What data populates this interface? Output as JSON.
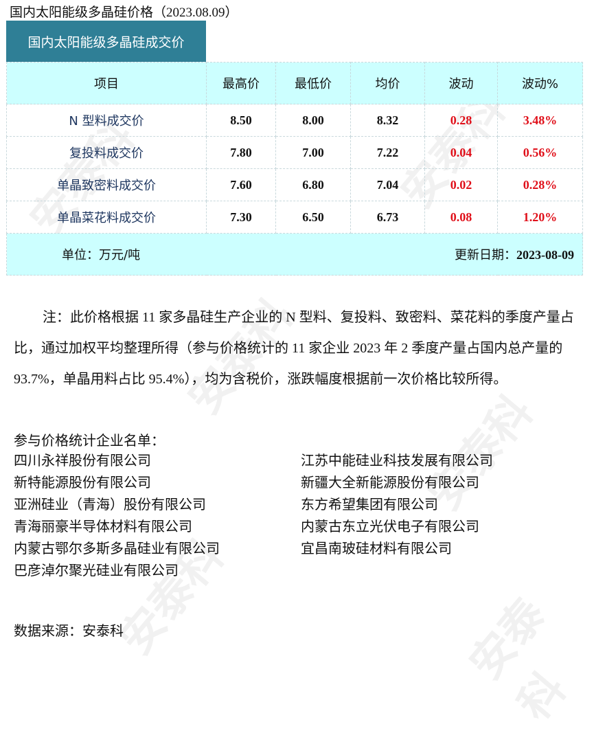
{
  "title": "国内太阳能级多晶硅价格（2023.08.09）",
  "table_title": "国内太阳能级多晶硅成交价",
  "headers": [
    "项目",
    "最高价",
    "最低价",
    "均价",
    "波动",
    "波动%"
  ],
  "rows": [
    {
      "name": "N 型料成交价",
      "high": "8.50",
      "low": "8.00",
      "avg": "8.32",
      "change": "0.28",
      "pct": "3.48%"
    },
    {
      "name": "复投料成交价",
      "high": "7.80",
      "low": "7.00",
      "avg": "7.22",
      "change": "0.04",
      "pct": "0.56%"
    },
    {
      "name": "单晶致密料成交价",
      "high": "7.60",
      "low": "6.80",
      "avg": "7.04",
      "change": "0.02",
      "pct": "0.28%"
    },
    {
      "name": "单晶菜花料成交价",
      "high": "7.30",
      "low": "6.50",
      "avg": "6.73",
      "change": "0.08",
      "pct": "1.20%"
    }
  ],
  "footer": {
    "unit": "单位：万元/吨",
    "updated_label": "更新日期：",
    "updated": "2023-08-09"
  },
  "note": "注：此价格根据 11 家多晶硅生产企业的 N 型料、复投料、致密料、菜花料的季度产量占比，通过加权平均整理所得（参与价格统计的 11 家企业 2023 年 2 季度产量占国内总产量的 93.7%，单晶用料占比 95.4%），均为含税价，涨跌幅度根据前一次价格比较所得。",
  "list_title": "参与价格统计企业名单：",
  "companies_left": [
    "四川永祥股份有限公司",
    "新特能源股份有限公司",
    "亚洲硅业（青海）股份有限公司",
    "青海丽豪半导体材料有限公司",
    "内蒙古鄂尔多斯多晶硅业有限公司",
    "巴彦淖尔聚光硅业有限公司"
  ],
  "companies_right": [
    "江苏中能硅业科技发展有限公司",
    "新疆大全新能源股份有限公司",
    "东方希望集团有限公司",
    "内蒙古东立光伏电子有限公司",
    "宜昌南玻硅材料有限公司"
  ],
  "source": "数据来源：安泰科",
  "watermark": "安泰科",
  "colors": {
    "tab": "#2f7f96",
    "header_bg": "#ccffff",
    "up": "#e0101a"
  }
}
